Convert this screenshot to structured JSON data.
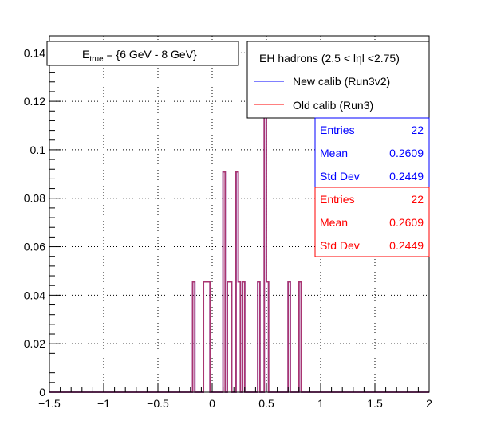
{
  "chart_data": {
    "type": "histogram",
    "xlim": [
      -1.5,
      2.0
    ],
    "ylim": [
      0,
      0.147
    ],
    "bin_width": 0.02,
    "grid": true,
    "xticks": [
      -1.5,
      -1.0,
      -0.5,
      0.0,
      0.5,
      1.0,
      1.5,
      2.0
    ],
    "xtick_labels": [
      "−1.5",
      "−1",
      "−0.5",
      "0",
      "0.5",
      "1",
      "1.5",
      "2"
    ],
    "yticks": [
      0,
      0.02,
      0.04,
      0.06,
      0.08,
      0.1,
      0.12,
      0.14
    ],
    "ytick_labels": [
      "0",
      "0.02",
      "0.04",
      "0.06",
      "0.08",
      "0.1",
      "0.12",
      "0.14"
    ],
    "series": [
      {
        "name": "New calib (Run3v2)",
        "color": "#0000ff",
        "bins": [
          {
            "x": -0.18,
            "y": 0.0455
          },
          {
            "x": -0.08,
            "y": 0.0455
          },
          {
            "x": -0.06,
            "y": 0.0455
          },
          {
            "x": -0.04,
            "y": 0.0455
          },
          {
            "x": 0.1,
            "y": 0.0909
          },
          {
            "x": 0.14,
            "y": 0.0455
          },
          {
            "x": 0.16,
            "y": 0.0455
          },
          {
            "x": 0.22,
            "y": 0.0909
          },
          {
            "x": 0.24,
            "y": 0.0455
          },
          {
            "x": 0.28,
            "y": 0.0455
          },
          {
            "x": 0.42,
            "y": 0.0455
          },
          {
            "x": 0.48,
            "y": 0.1364
          },
          {
            "x": 0.5,
            "y": 0.0455
          },
          {
            "x": 0.7,
            "y": 0.0455
          },
          {
            "x": 0.8,
            "y": 0.0455
          }
        ]
      },
      {
        "name": "Old calib (Run3)",
        "color": "#ff0000",
        "bins": [
          {
            "x": -0.18,
            "y": 0.0455
          },
          {
            "x": -0.08,
            "y": 0.0455
          },
          {
            "x": -0.06,
            "y": 0.0455
          },
          {
            "x": -0.04,
            "y": 0.0455
          },
          {
            "x": 0.1,
            "y": 0.0909
          },
          {
            "x": 0.14,
            "y": 0.0455
          },
          {
            "x": 0.16,
            "y": 0.0455
          },
          {
            "x": 0.22,
            "y": 0.0909
          },
          {
            "x": 0.24,
            "y": 0.0455
          },
          {
            "x": 0.28,
            "y": 0.0455
          },
          {
            "x": 0.42,
            "y": 0.0455
          },
          {
            "x": 0.48,
            "y": 0.1364
          },
          {
            "x": 0.5,
            "y": 0.0455
          },
          {
            "x": 0.7,
            "y": 0.0455
          },
          {
            "x": 0.8,
            "y": 0.0455
          }
        ]
      }
    ],
    "overlap_color": "#b03060",
    "energy_label": {
      "main": "E",
      "sub": "true",
      "rest": " =  {6 GeV - 8 GeV}"
    },
    "legend": {
      "header": "EH hadrons (2.5 < lηl <2.75)",
      "entries": [
        "New calib (Run3v2)",
        "Old calib (Run3)"
      ]
    },
    "stats": [
      {
        "color": "#0000ff",
        "rows": [
          {
            "label": "Entries",
            "value": "22"
          },
          {
            "label": "Mean",
            "value": "0.2609"
          },
          {
            "label": "Std Dev",
            "value": "0.2449"
          }
        ]
      },
      {
        "color": "#ff0000",
        "rows": [
          {
            "label": "Entries",
            "value": "22"
          },
          {
            "label": "Mean",
            "value": "0.2609"
          },
          {
            "label": "Std Dev",
            "value": "0.2449"
          }
        ]
      }
    ]
  }
}
